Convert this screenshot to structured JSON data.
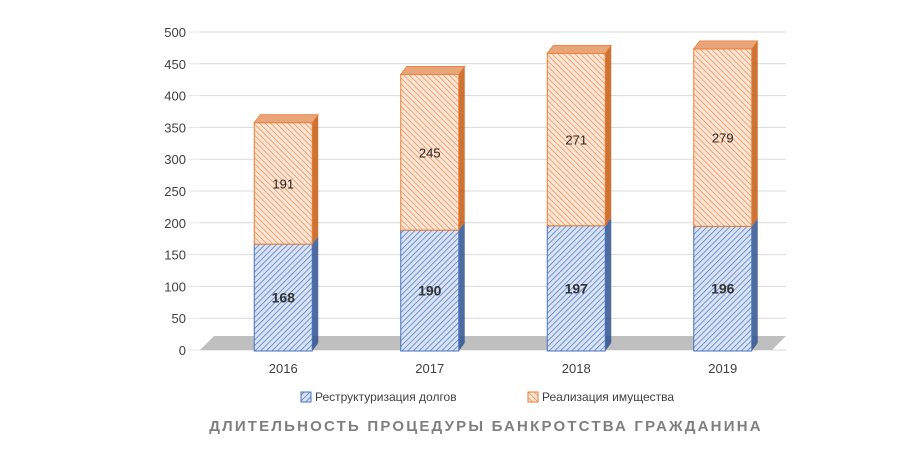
{
  "chart_data": {
    "type": "bar",
    "stacked": true,
    "style": "3d",
    "title": "ДЛИТЕЛЬНОСТЬ ПРОЦЕДУРЫ БАНКРОТСТВА ГРАЖДАНИНА",
    "categories": [
      "2016",
      "2017",
      "2018",
      "2019"
    ],
    "series": [
      {
        "name": "Реструктуризация долгов",
        "values": [
          168,
          190,
          197,
          196
        ],
        "color": "#4472C4",
        "fill": "#DAE3F3"
      },
      {
        "name": "Реализация имущества",
        "values": [
          191,
          245,
          271,
          279
        ],
        "color": "#ED7D31",
        "fill": "#FBE5D6"
      }
    ],
    "ylim": [
      0,
      500
    ],
    "yticks": [
      "0",
      "50",
      "100",
      "150",
      "200",
      "250",
      "300",
      "350",
      "400",
      "450",
      "500"
    ],
    "grid": true,
    "legend_position": "bottom"
  }
}
